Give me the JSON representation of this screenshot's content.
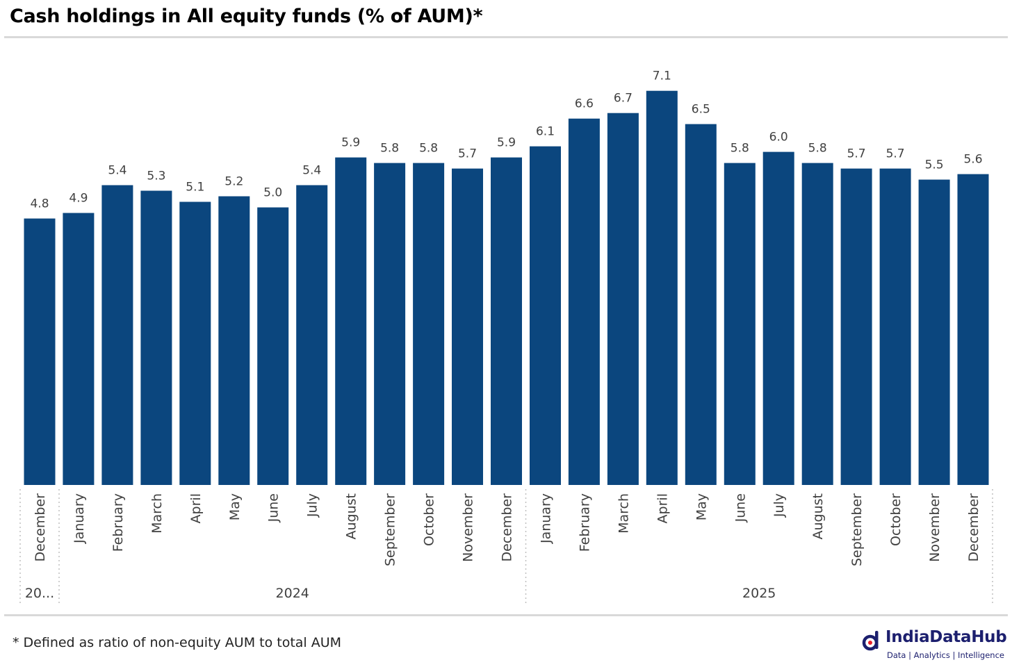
{
  "title": "Cash holdings in All equity funds (% of AUM)*",
  "footnote": "* Defined as ratio of non-equity AUM to total AUM",
  "logo": {
    "name": "IndiaDataHub",
    "tagline": "Data | Analytics | Intelligence",
    "icon": "indiadatahub-logo-icon"
  },
  "colors": {
    "bar": "#0b467e",
    "label": "#404040",
    "rule": "#d9d9d9",
    "separator": "#bfbfbf",
    "brand": "#1c1f6e"
  },
  "chart_data": {
    "type": "bar",
    "title": "Cash holdings in All equity funds (% of AUM)*",
    "xlabel": "",
    "ylabel": "",
    "ylim": [
      0,
      7.55
    ],
    "grid": false,
    "legend": "none",
    "categories": [
      "December",
      "January",
      "February",
      "March",
      "April",
      "May",
      "June",
      "July",
      "August",
      "September",
      "October",
      "November",
      "December",
      "January",
      "February",
      "March",
      "April",
      "May",
      "June",
      "July",
      "August",
      "September",
      "October",
      "November",
      "December"
    ],
    "values": [
      4.8,
      4.9,
      5.4,
      5.3,
      5.1,
      5.2,
      5.0,
      5.4,
      5.9,
      5.8,
      5.8,
      5.7,
      5.9,
      6.1,
      6.6,
      6.7,
      7.1,
      6.5,
      5.8,
      6.0,
      5.8,
      5.7,
      5.7,
      5.5,
      5.6
    ],
    "data_labels": [
      "4.8",
      "4.9",
      "5.4",
      "5.3",
      "5.1",
      "5.2",
      "5.0",
      "5.4",
      "5.9",
      "5.8",
      "5.8",
      "5.7",
      "5.9",
      "6.1",
      "6.6",
      "6.7",
      "7.1",
      "6.5",
      "5.8",
      "6.0",
      "5.8",
      "5.7",
      "5.7",
      "5.5",
      "5.6"
    ],
    "year_groups": [
      {
        "label": "20...",
        "count": 1
      },
      {
        "label": "2024",
        "count": 12
      },
      {
        "label": "2025",
        "count": 12
      }
    ]
  }
}
